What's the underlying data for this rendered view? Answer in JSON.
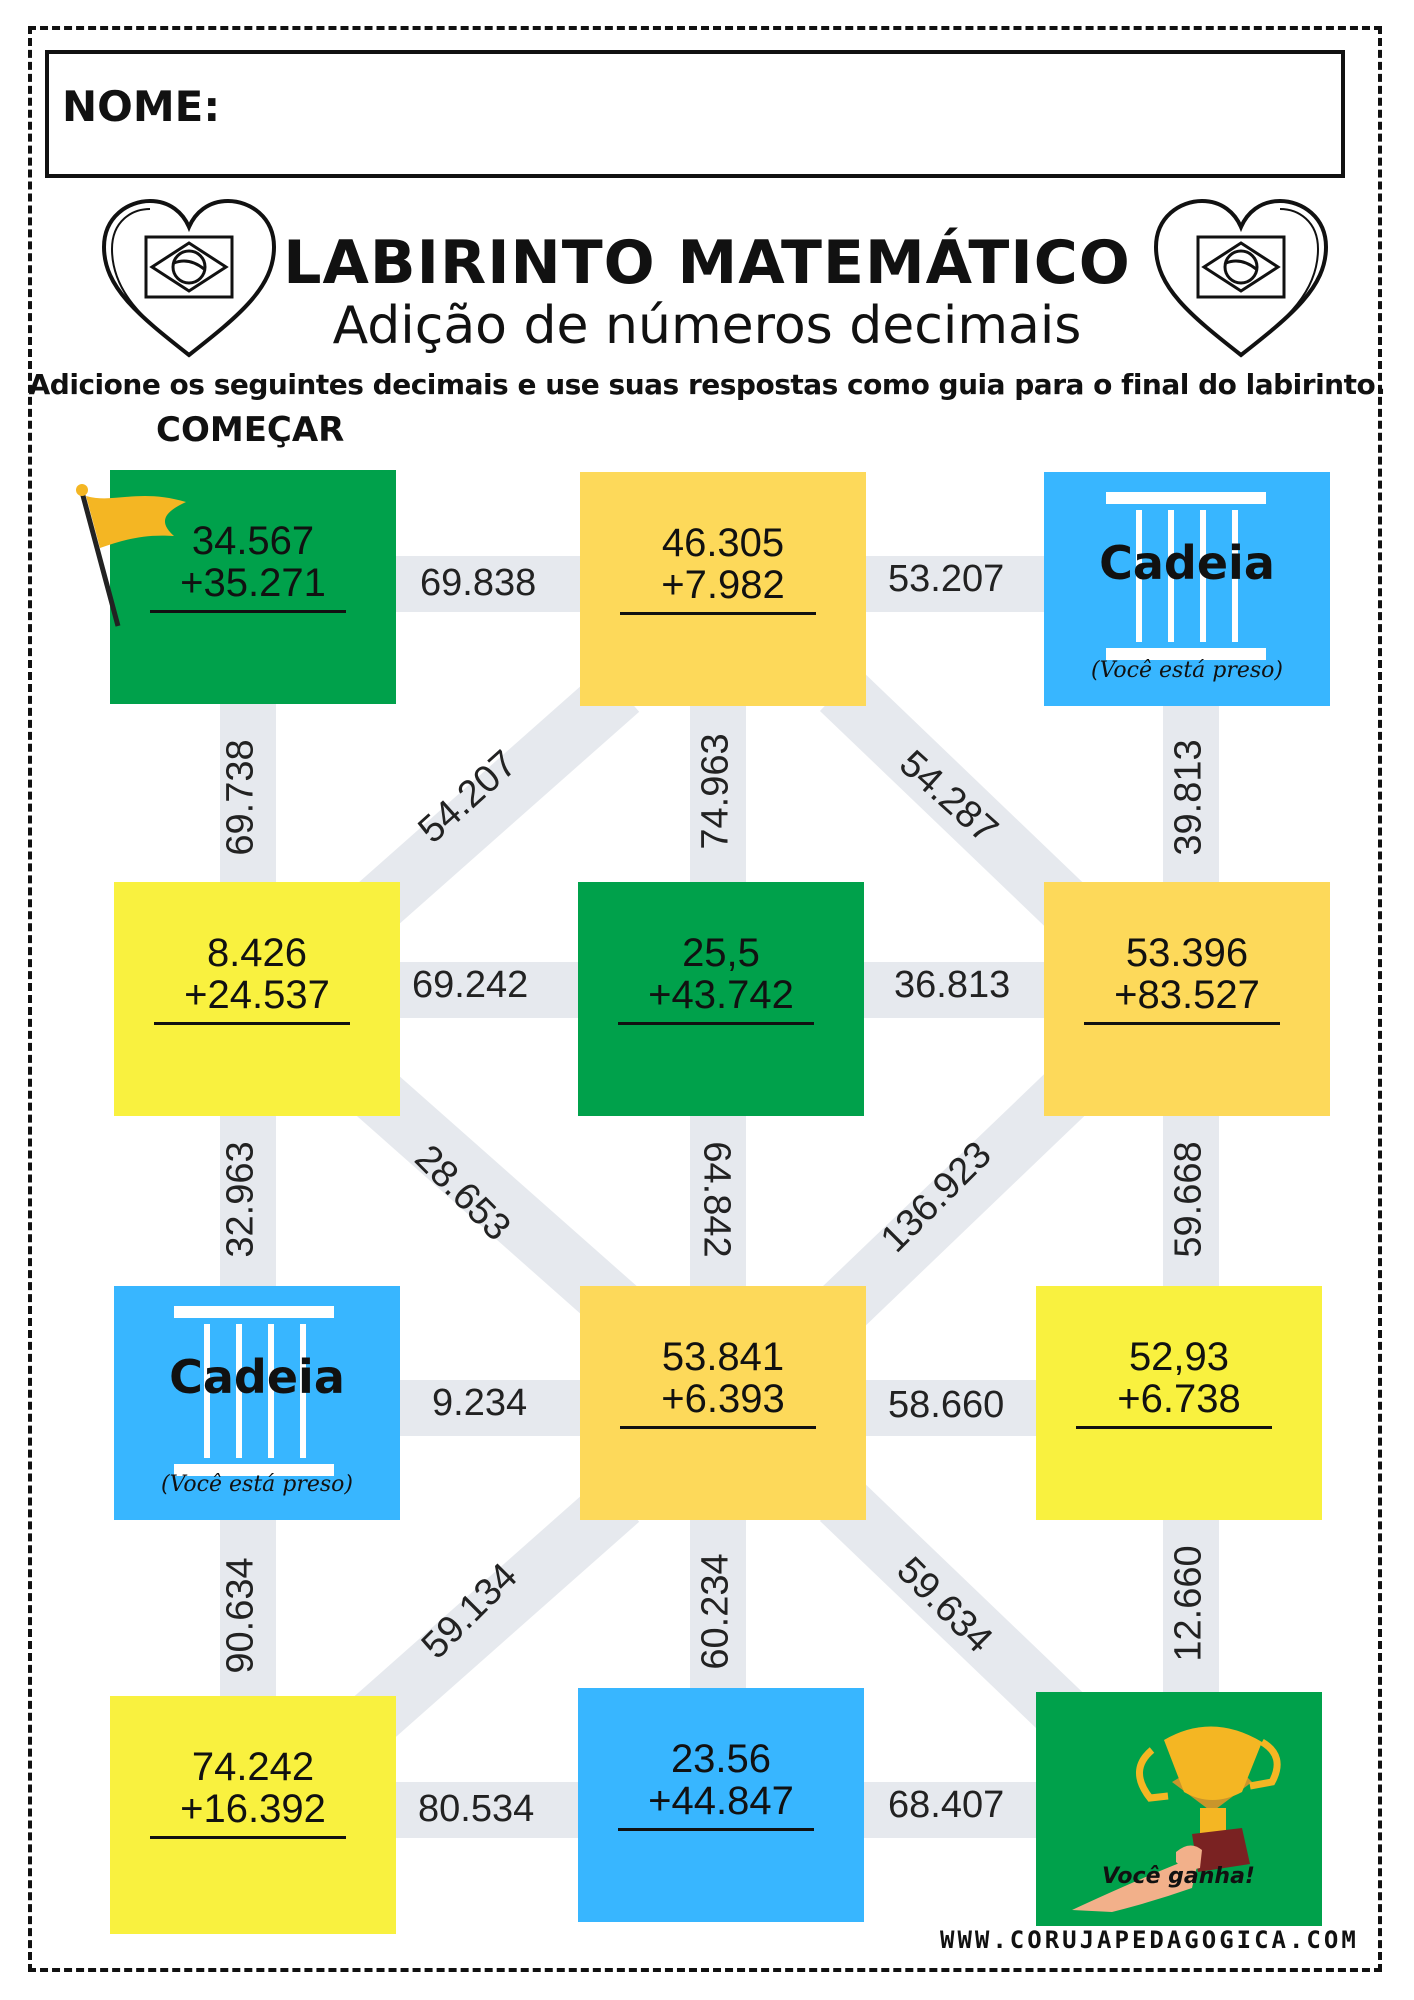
{
  "header": {
    "name_label": "NOME:",
    "title": "LABIRINTO MATEMÁTICO",
    "subtitle": "Adição de números decimais",
    "instructions": "Adicione os seguintes decimais e use suas respostas como guia para o final do labirinto.",
    "start_label": "COMEÇAR"
  },
  "colors": {
    "green": "#00a14b",
    "yellow": "#f9f13f",
    "gold": "#fdd95a",
    "blue": "#38b6ff",
    "path": "#e6e9ee"
  },
  "cells": {
    "r1c1": {
      "top": "34.567",
      "bottom": "+35.271"
    },
    "r1c2": {
      "top": "46.305",
      "bottom": "+7.982"
    },
    "r1c3": {
      "jail": "Cadeia",
      "note": "(Você está preso)"
    },
    "r2c1": {
      "top": "8.426",
      "bottom": "+24.537"
    },
    "r2c2": {
      "top": "25,5",
      "bottom": "+43.742"
    },
    "r2c3": {
      "top": "53.396",
      "bottom": "+83.527"
    },
    "r3c1": {
      "jail": "Cadeia",
      "note": "(Você está preso)"
    },
    "r3c2": {
      "top": "53.841",
      "bottom": "+6.393"
    },
    "r3c3": {
      "top": "52,93",
      "bottom": "+6.738"
    },
    "r4c1": {
      "top": "74.242",
      "bottom": "+16.392"
    },
    "r4c2": {
      "top": "23.56",
      "bottom": "+44.847"
    },
    "r4c3": {
      "win": "Você ganha!"
    }
  },
  "edges": {
    "r1_h1": "69.838",
    "r1_h2": "53.207",
    "v1_c1": "69.738",
    "d1_left": "54.207",
    "v1_c2": "74.963",
    "d1_right": "54.287",
    "v1_c3": "39.813",
    "r2_h1": "69.242",
    "r2_h2": "36.813",
    "v2_c1": "32.963",
    "d2_left": "28.653",
    "v2_c2": "64.842",
    "d2_right": "136.923",
    "v2_c3": "59.668",
    "r3_h1": "9.234",
    "r3_h2": "58.660",
    "v3_c1": "90.634",
    "d3_left": "59.134",
    "v3_c2": "60.234",
    "d3_right": "59.634",
    "v3_c3": "12.660",
    "r4_h1": "80.534",
    "r4_h2": "68.407"
  },
  "footer": {
    "website": "WWW.CORUJAPEDAGOGICA.COM"
  }
}
